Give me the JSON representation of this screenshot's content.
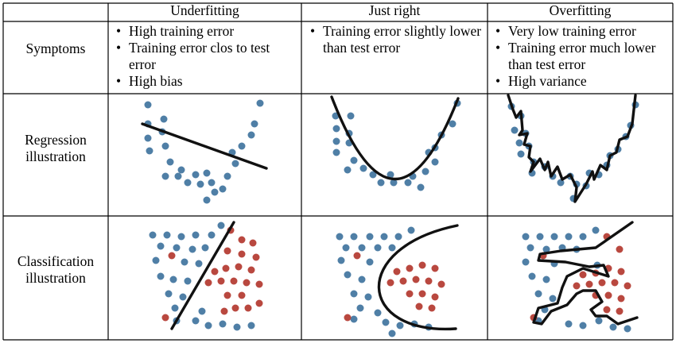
{
  "headers": {
    "col1": "Underfitting",
    "col2": "Just right",
    "col3": "Overfitting"
  },
  "rows": {
    "symptoms": "Symptoms",
    "regression_line1": "Regression",
    "regression_line2": "illustration",
    "classification_line1": "Classification",
    "classification_line2": "illustration"
  },
  "symptoms": {
    "underfitting": [
      "High training error",
      "Training error clos to test error",
      "High bias"
    ],
    "just_right": [
      "Training error slightly lower than test error"
    ],
    "overfitting": [
      "Very low training error",
      "Training error much lower than test error",
      "High variance"
    ]
  },
  "colors": {
    "blue_points": "#4f7fa6",
    "red_points": "#b9483f",
    "lines": "#111111"
  }
}
